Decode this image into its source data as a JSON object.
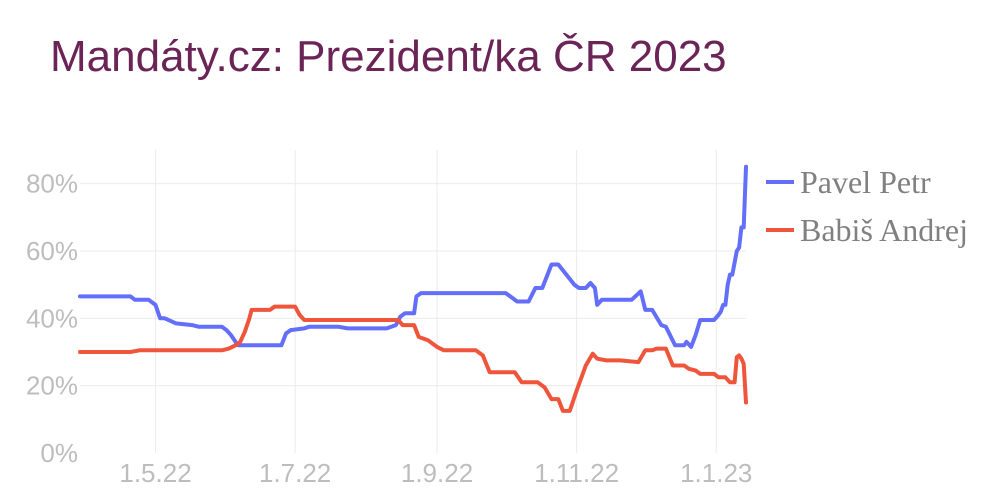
{
  "chart_data": {
    "type": "line",
    "title": "Mandáty.cz: Prezident/ka ČR 2023",
    "xlabel": "",
    "ylabel": "",
    "x_ticks": [
      {
        "label": "1.5.22",
        "date": "2022-05-01"
      },
      {
        "label": "1.7.22",
        "date": "2022-07-01"
      },
      {
        "label": "1.9.22",
        "date": "2022-09-01"
      },
      {
        "label": "1.11.22",
        "date": "2022-11-01"
      },
      {
        "label": "1.1.23",
        "date": "2023-01-01"
      }
    ],
    "xlim": [
      "2022-03-29",
      "2023-01-14"
    ],
    "y_ticks": [
      {
        "label": "0%",
        "value": 0
      },
      {
        "label": "20%",
        "value": 20
      },
      {
        "label": "40%",
        "value": 40
      },
      {
        "label": "60%",
        "value": 60
      },
      {
        "label": "80%",
        "value": 80
      }
    ],
    "ylim": [
      0,
      90
    ],
    "grid": true,
    "legend": "right",
    "series": [
      {
        "name": "Pavel Petr",
        "color": "#636efa",
        "points": [
          [
            "2022-03-29",
            46.5
          ],
          [
            "2022-04-20",
            46.5
          ],
          [
            "2022-04-22",
            45.5
          ],
          [
            "2022-04-28",
            45.5
          ],
          [
            "2022-05-01",
            44
          ],
          [
            "2022-05-03",
            40
          ],
          [
            "2022-05-05",
            40
          ],
          [
            "2022-05-10",
            38.5
          ],
          [
            "2022-05-17",
            38
          ],
          [
            "2022-05-20",
            37.5
          ],
          [
            "2022-05-30",
            37.5
          ],
          [
            "2022-06-01",
            36.5
          ],
          [
            "2022-06-03",
            35
          ],
          [
            "2022-06-06",
            32
          ],
          [
            "2022-06-25",
            32
          ],
          [
            "2022-06-27",
            35.5
          ],
          [
            "2022-06-29",
            36.5
          ],
          [
            "2022-07-05",
            37
          ],
          [
            "2022-07-07",
            37.5
          ],
          [
            "2022-07-20",
            37.5
          ],
          [
            "2022-07-24",
            37
          ],
          [
            "2022-08-10",
            37
          ],
          [
            "2022-08-14",
            38
          ],
          [
            "2022-08-16",
            40.5
          ],
          [
            "2022-08-18",
            41.5
          ],
          [
            "2022-08-22",
            41.5
          ],
          [
            "2022-08-23",
            46.5
          ],
          [
            "2022-08-25",
            47.5
          ],
          [
            "2022-10-01",
            47.5
          ],
          [
            "2022-10-04",
            46
          ],
          [
            "2022-10-06",
            45
          ],
          [
            "2022-10-11",
            45
          ],
          [
            "2022-10-14",
            49
          ],
          [
            "2022-10-17",
            49
          ],
          [
            "2022-10-21",
            56
          ],
          [
            "2022-10-24",
            56
          ],
          [
            "2022-10-31",
            50
          ],
          [
            "2022-11-02",
            49
          ],
          [
            "2022-11-05",
            49
          ],
          [
            "2022-11-07",
            50.5
          ],
          [
            "2022-11-09",
            49
          ],
          [
            "2022-11-10",
            44
          ],
          [
            "2022-11-12",
            45.5
          ],
          [
            "2022-11-25",
            45.5
          ],
          [
            "2022-11-29",
            48
          ],
          [
            "2022-12-01",
            42.5
          ],
          [
            "2022-12-04",
            42.5
          ],
          [
            "2022-12-08",
            38
          ],
          [
            "2022-12-10",
            37.5
          ],
          [
            "2022-12-14",
            32
          ],
          [
            "2022-12-18",
            32
          ],
          [
            "2022-12-19",
            33
          ],
          [
            "2022-12-21",
            31.5
          ],
          [
            "2022-12-23",
            35
          ],
          [
            "2022-12-25",
            39.5
          ],
          [
            "2022-12-31",
            39.5
          ],
          [
            "2023-01-02",
            41
          ],
          [
            "2023-01-03",
            42
          ],
          [
            "2023-01-04",
            44
          ],
          [
            "2023-01-05",
            44
          ],
          [
            "2023-01-06",
            50
          ],
          [
            "2023-01-07",
            53
          ],
          [
            "2023-01-08",
            53
          ],
          [
            "2023-01-10",
            60
          ],
          [
            "2023-01-11",
            61
          ],
          [
            "2023-01-12",
            67
          ],
          [
            "2023-01-13",
            67
          ],
          [
            "2023-01-14",
            85
          ]
        ]
      },
      {
        "name": "Babiš Andrej",
        "color": "#ef553b",
        "points": [
          [
            "2022-03-29",
            30
          ],
          [
            "2022-04-20",
            30
          ],
          [
            "2022-04-24",
            30.5
          ],
          [
            "2022-05-30",
            30.5
          ],
          [
            "2022-06-02",
            31
          ],
          [
            "2022-06-05",
            32
          ],
          [
            "2022-06-07",
            33
          ],
          [
            "2022-06-09",
            36
          ],
          [
            "2022-06-11",
            40
          ],
          [
            "2022-06-12",
            42.5
          ],
          [
            "2022-06-20",
            42.5
          ],
          [
            "2022-06-22",
            43.5
          ],
          [
            "2022-07-01",
            43.5
          ],
          [
            "2022-07-03",
            41
          ],
          [
            "2022-07-05",
            39.5
          ],
          [
            "2022-08-15",
            39.5
          ],
          [
            "2022-08-17",
            38
          ],
          [
            "2022-08-22",
            38
          ],
          [
            "2022-08-24",
            34.5
          ],
          [
            "2022-08-28",
            33.5
          ],
          [
            "2022-09-01",
            31.5
          ],
          [
            "2022-09-04",
            30.5
          ],
          [
            "2022-09-18",
            30.5
          ],
          [
            "2022-09-21",
            29
          ],
          [
            "2022-09-24",
            24
          ],
          [
            "2022-10-05",
            24
          ],
          [
            "2022-10-08",
            21
          ],
          [
            "2022-10-15",
            21
          ],
          [
            "2022-10-18",
            19.5
          ],
          [
            "2022-10-21",
            16
          ],
          [
            "2022-10-24",
            16
          ],
          [
            "2022-10-26",
            12.5
          ],
          [
            "2022-10-29",
            12.5
          ],
          [
            "2022-11-01",
            18.5
          ],
          [
            "2022-11-05",
            26
          ],
          [
            "2022-11-08",
            29.5
          ],
          [
            "2022-11-10",
            28
          ],
          [
            "2022-11-14",
            27.5
          ],
          [
            "2022-11-20",
            27.5
          ],
          [
            "2022-11-28",
            27
          ],
          [
            "2022-12-01",
            30.5
          ],
          [
            "2022-12-04",
            30.5
          ],
          [
            "2022-12-06",
            31
          ],
          [
            "2022-12-10",
            31
          ],
          [
            "2022-12-13",
            26
          ],
          [
            "2022-12-18",
            26
          ],
          [
            "2022-12-20",
            25
          ],
          [
            "2022-12-23",
            24.5
          ],
          [
            "2022-12-25",
            23.5
          ],
          [
            "2022-12-31",
            23.5
          ],
          [
            "2023-01-02",
            22.5
          ],
          [
            "2023-01-05",
            22.5
          ],
          [
            "2023-01-07",
            21
          ],
          [
            "2023-01-09",
            21
          ],
          [
            "2023-01-10",
            28.5
          ],
          [
            "2023-01-11",
            29
          ],
          [
            "2023-01-12",
            28
          ],
          [
            "2023-01-13",
            26.5
          ],
          [
            "2023-01-14",
            15
          ]
        ]
      }
    ]
  }
}
